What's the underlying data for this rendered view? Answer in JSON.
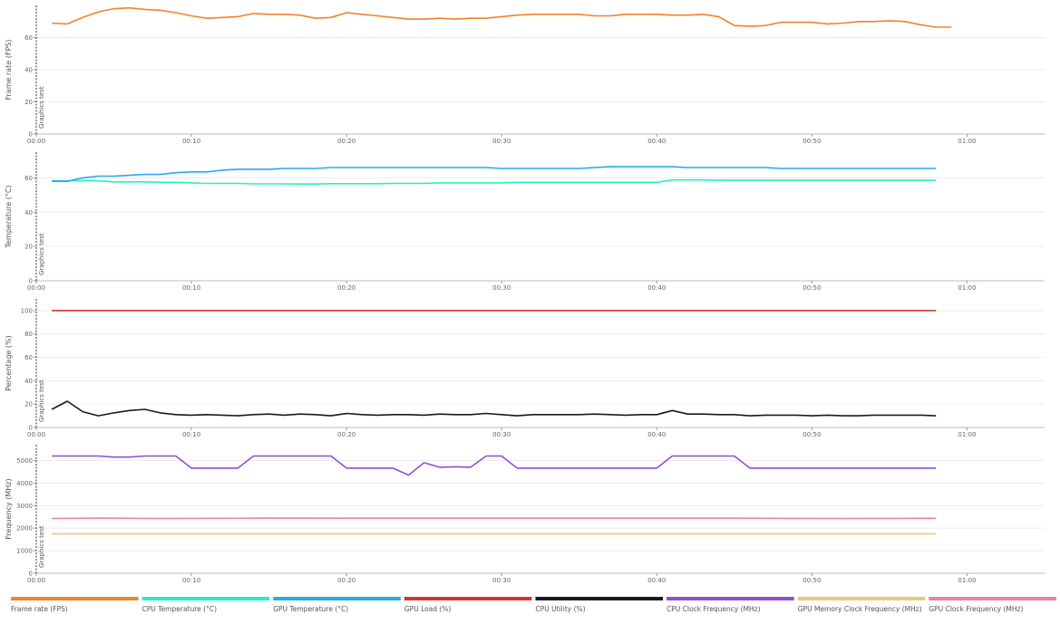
{
  "marker": {
    "label": "Graphics test",
    "x": 0
  },
  "x_axis": {
    "min": 0,
    "max": 65,
    "ticks": [
      0,
      10,
      20,
      30,
      40,
      50,
      60
    ],
    "tick_labels": [
      "00:00",
      "00:10",
      "00:20",
      "00:30",
      "00:40",
      "00:50",
      "01:00"
    ]
  },
  "chart_data": [
    {
      "type": "line",
      "ylabel": "Frame rate (FPS)",
      "ylim": [
        0,
        80
      ],
      "yticks": [
        0,
        20,
        40,
        60
      ],
      "grid": true,
      "series": [
        {
          "name": "Frame rate (FPS)",
          "color": "#F0832A",
          "x": [
            1,
            2,
            3,
            4,
            5,
            6,
            7,
            8,
            9,
            10,
            11,
            12,
            13,
            14,
            15,
            16,
            17,
            18,
            19,
            20,
            21,
            22,
            23,
            24,
            25,
            26,
            27,
            28,
            29,
            30,
            31,
            32,
            33,
            34,
            35,
            36,
            37,
            38,
            39,
            40,
            41,
            42,
            43,
            44,
            45,
            46,
            47,
            48,
            49,
            50,
            51,
            52,
            53,
            54,
            55,
            56,
            57,
            58,
            59
          ],
          "y": [
            69,
            68.5,
            72.5,
            76,
            78,
            78.5,
            77.5,
            77,
            75.5,
            73.5,
            72,
            72.5,
            73,
            75,
            74.5,
            74.5,
            74,
            72,
            72.5,
            75.5,
            74.5,
            73.5,
            72.5,
            71.5,
            71.5,
            72,
            71.5,
            72,
            72,
            73,
            74,
            74.5,
            74.5,
            74.5,
            74.5,
            73.5,
            73.5,
            74.5,
            74.5,
            74.5,
            74,
            74,
            74.5,
            73,
            67.5,
            67,
            67.5,
            69.5,
            69.5,
            69.5,
            68.5,
            69,
            70,
            70,
            70.5,
            70,
            68,
            66.5,
            66.5
          ]
        }
      ]
    },
    {
      "type": "line",
      "ylabel": "Temperature (°C)",
      "ylim": [
        0,
        75
      ],
      "yticks": [
        0,
        20,
        40,
        60
      ],
      "grid": true,
      "series": [
        {
          "name": "CPU Temperature (°C)",
          "color": "#27EFC0",
          "x": [
            1,
            2,
            3,
            4,
            5,
            6,
            7,
            8,
            9,
            10,
            11,
            12,
            13,
            14,
            15,
            16,
            17,
            18,
            19,
            20,
            21,
            22,
            23,
            24,
            25,
            26,
            27,
            28,
            29,
            30,
            31,
            32,
            33,
            34,
            35,
            36,
            37,
            38,
            39,
            40,
            41,
            42,
            43,
            44,
            45,
            46,
            47,
            48,
            49,
            50,
            51,
            52,
            53,
            54,
            55,
            56,
            57,
            58
          ],
          "y": [
            58.3,
            58.3,
            58.3,
            58.3,
            57.7,
            57.7,
            57.7,
            57.4,
            57.4,
            57.1,
            56.8,
            56.8,
            56.8,
            56.5,
            56.5,
            56.5,
            56.4,
            56.4,
            56.6,
            56.6,
            56.6,
            56.6,
            56.8,
            56.8,
            56.8,
            57.1,
            57.1,
            57.1,
            57.1,
            57.1,
            57.4,
            57.4,
            57.4,
            57.4,
            57.4,
            57.4,
            57.4,
            57.4,
            57.4,
            57.4,
            58.8,
            58.8,
            58.8,
            58.6,
            58.6,
            58.6,
            58.6,
            58.6,
            58.6,
            58.6,
            58.6,
            58.6,
            58.6,
            58.6,
            58.6,
            58.6,
            58.6,
            58.6
          ]
        },
        {
          "name": "GPU Temperature (°C)",
          "color": "#26A9F0",
          "x": [
            1,
            2,
            3,
            4,
            5,
            6,
            7,
            8,
            9,
            10,
            11,
            12,
            13,
            14,
            15,
            16,
            17,
            18,
            19,
            20,
            21,
            22,
            23,
            24,
            25,
            26,
            27,
            28,
            29,
            30,
            31,
            32,
            33,
            34,
            35,
            36,
            37,
            38,
            39,
            40,
            41,
            42,
            43,
            44,
            45,
            46,
            47,
            48,
            49,
            50,
            51,
            52,
            53,
            54,
            55,
            56,
            57,
            58
          ],
          "y": [
            58,
            58,
            60,
            61,
            61,
            61.5,
            62,
            62,
            63,
            63.5,
            63.5,
            64.5,
            65,
            65,
            65,
            65.5,
            65.5,
            65.5,
            66,
            66,
            66,
            66,
            66,
            66,
            66,
            66,
            66,
            66,
            66,
            65.5,
            65.5,
            65.5,
            65.5,
            65.5,
            65.5,
            66,
            66.5,
            66.5,
            66.5,
            66.5,
            66.5,
            66,
            66,
            66,
            66,
            66,
            66,
            65.5,
            65.5,
            65.5,
            65.5,
            65.5,
            65.5,
            65.5,
            65.5,
            65.5,
            65.5,
            65.5
          ]
        }
      ]
    },
    {
      "type": "line",
      "ylabel": "Percentage (%)",
      "ylim": [
        0,
        110
      ],
      "yticks": [
        0,
        20,
        40,
        60,
        80,
        100
      ],
      "grid": true,
      "series": [
        {
          "name": "GPU Load (%)",
          "color": "#D43434",
          "x": [
            1,
            58
          ],
          "y": [
            100,
            100
          ]
        },
        {
          "name": "CPU Utility (%)",
          "color": "#1A1A1A",
          "x": [
            1,
            2,
            3,
            4,
            5,
            6,
            7,
            8,
            9,
            10,
            11,
            12,
            13,
            14,
            15,
            16,
            17,
            18,
            19,
            20,
            21,
            22,
            23,
            24,
            25,
            26,
            27,
            28,
            29,
            30,
            31,
            32,
            33,
            34,
            35,
            36,
            37,
            38,
            39,
            40,
            41,
            42,
            43,
            44,
            45,
            46,
            47,
            48,
            49,
            50,
            51,
            52,
            53,
            54,
            55,
            56,
            57,
            58
          ],
          "y": [
            15.5,
            22.5,
            13.5,
            10,
            12.5,
            14.5,
            15.5,
            12.5,
            11,
            10.5,
            11,
            10.5,
            10,
            11,
            11.5,
            10.5,
            11.5,
            11,
            10,
            12,
            11,
            10.5,
            11,
            11,
            10.5,
            11.5,
            11,
            11,
            12,
            11,
            10,
            11,
            11,
            11,
            11,
            11.5,
            11,
            10.5,
            11,
            11,
            14.5,
            11.5,
            11.5,
            11,
            11,
            10,
            10.5,
            10.5,
            10.5,
            10,
            10.5,
            10,
            10,
            10.5,
            10.5,
            10.5,
            10.5,
            10
          ]
        }
      ]
    },
    {
      "type": "line",
      "ylabel": "Frequency (MHz)",
      "ylim": [
        0,
        5700
      ],
      "yticks": [
        0,
        1000,
        2000,
        3000,
        4000,
        5000
      ],
      "grid": true,
      "series": [
        {
          "name": "CPU Clock Frequency (MHz)",
          "color": "#9050D0",
          "x": [
            1,
            2,
            3,
            4,
            5,
            6,
            7,
            8,
            9,
            10,
            11,
            12,
            13,
            14,
            15,
            16,
            17,
            18,
            19,
            20,
            21,
            22,
            23,
            24,
            25,
            26,
            27,
            28,
            29,
            30,
            31,
            32,
            33,
            34,
            35,
            36,
            37,
            38,
            39,
            40,
            41,
            42,
            43,
            44,
            45,
            46,
            47,
            48,
            49,
            50,
            51,
            52,
            53,
            54,
            55,
            56,
            57,
            58
          ],
          "y": [
            5200,
            5200,
            5200,
            5200,
            5150,
            5150,
            5200,
            5200,
            5200,
            4660,
            4660,
            4660,
            4660,
            5200,
            5200,
            5200,
            5200,
            5200,
            5200,
            4660,
            4660,
            4660,
            4660,
            4350,
            4900,
            4700,
            4720,
            4700,
            5200,
            5200,
            4660,
            4660,
            4660,
            4660,
            4660,
            4660,
            4660,
            4660,
            4660,
            4660,
            5200,
            5200,
            5200,
            5200,
            5200,
            4660,
            4660,
            4660,
            4660,
            4660,
            4660,
            4660,
            4660,
            4660,
            4660,
            4660,
            4660,
            4660
          ]
        },
        {
          "name": "GPU Memory Clock Frequency (MHz)",
          "color": "#E8C97A",
          "x": [
            1,
            58
          ],
          "y": [
            1750,
            1750
          ]
        },
        {
          "name": "GPU Clock Frequency (MHz)",
          "color": "#EE7EAE",
          "x": [
            1,
            4,
            8,
            15,
            25,
            35,
            45,
            52,
            58
          ],
          "y": [
            2430,
            2445,
            2430,
            2445,
            2440,
            2440,
            2440,
            2430,
            2435
          ]
        }
      ]
    }
  ],
  "legend": [
    {
      "label": "Frame rate (FPS)",
      "color": "#F0832A"
    },
    {
      "label": "CPU Temperature (°C)",
      "color": "#27EFC0"
    },
    {
      "label": "GPU Temperature (°C)",
      "color": "#26A9F0"
    },
    {
      "label": "GPU Load (%)",
      "color": "#D43434"
    },
    {
      "label": "CPU Utility (%)",
      "color": "#1A1A1A"
    },
    {
      "label": "CPU Clock Frequency (MHz)",
      "color": "#9050D0"
    },
    {
      "label": "GPU Memory Clock Frequency (MHz)",
      "color": "#E8C97A"
    },
    {
      "label": "GPU Clock Frequency (MHz)",
      "color": "#EE7EAE"
    }
  ]
}
